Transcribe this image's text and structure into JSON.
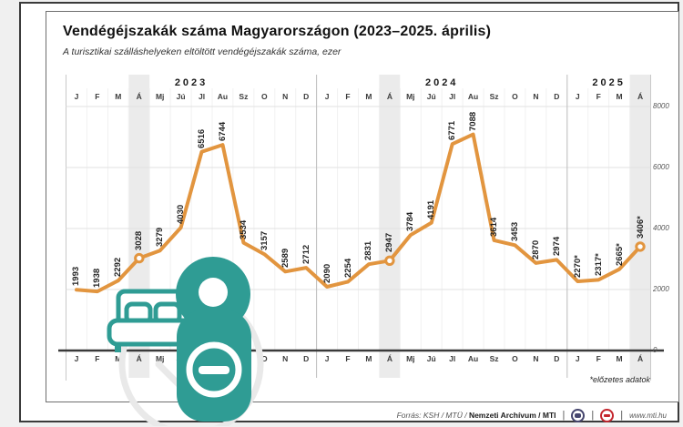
{
  "page": {
    "title": "Vendégéjszakák száma Magyarországon (2023–2025. április)",
    "subtitle": "A turisztikai szálláshelyeken eltöltött vendégéjszakák száma, ezer",
    "footnote": "*előzetes adatok",
    "footer": {
      "source_prefix": "Forrás: KSH / MTÜ / ",
      "source_bold": "Nemzeti Archívum / MTI",
      "separator": "|",
      "website": "www.mti.hu"
    },
    "colors": {
      "line_orange": "#E2953F",
      "teal": "#2F9C94",
      "highlight_band": "#EBEBEB",
      "logo1": "#46466E",
      "logo2": "#C4262E"
    }
  },
  "chart_data": {
    "type": "line",
    "title": "Vendégéjszakák száma Magyarországon (2023–2025. április)",
    "subtitle": "A turisztikai szálláshelyeken eltöltött vendégéjszakák száma, ezer",
    "unit": "ezer",
    "years": [
      {
        "label": "2023",
        "start": 0,
        "count": 12
      },
      {
        "label": "2024",
        "start": 12,
        "count": 12
      },
      {
        "label": "2025",
        "start": 24,
        "count": 4
      }
    ],
    "categories": [
      "J",
      "F",
      "M",
      "Á",
      "Mj",
      "Jú",
      "Jl",
      "Au",
      "Sz",
      "O",
      "N",
      "D",
      "J",
      "F",
      "M",
      "Á",
      "Mj",
      "Jú",
      "Jl",
      "Au",
      "Sz",
      "O",
      "N",
      "D",
      "J",
      "F",
      "M",
      "Á"
    ],
    "values": [
      1993,
      1938,
      2292,
      3028,
      3279,
      4030,
      6516,
      6744,
      3534,
      3157,
      2589,
      2712,
      2090,
      2254,
      2831,
      2947,
      3784,
      4191,
      6771,
      7088,
      3614,
      3453,
      2870,
      2974,
      2270,
      2317,
      2665,
      3406
    ],
    "value_labels": [
      "1993",
      "1938",
      "2292",
      "3028",
      "3279",
      "4030",
      "6516",
      "6744",
      "3534",
      "3157",
      "2589",
      "2712",
      "2090",
      "2254",
      "2831",
      "2947",
      "3784",
      "4191",
      "6771",
      "7088",
      "3614",
      "3453",
      "2870",
      "2974",
      "2270*",
      "2317*",
      "2665*",
      "3406*"
    ],
    "marker_indices": [
      3,
      15,
      27
    ],
    "highlight_band_indices": [
      3,
      15,
      27
    ],
    "y_ticks": [
      8000,
      6000,
      4000,
      2000,
      0
    ],
    "ylim": [
      0,
      8000
    ],
    "grid": true,
    "legend": "none",
    "line_color": "#E2953F",
    "band_color": "#EBEBEB",
    "footnote": "*előzetes adatok"
  }
}
